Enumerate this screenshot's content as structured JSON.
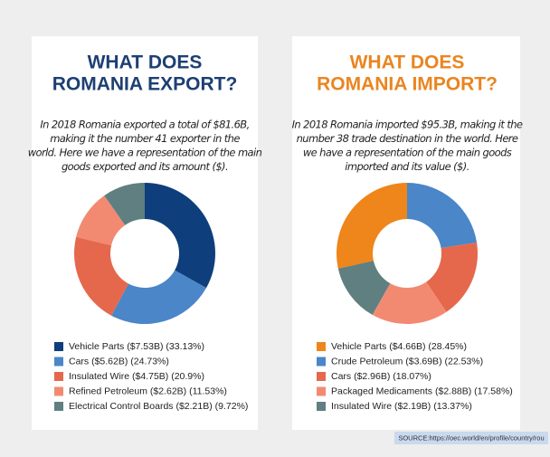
{
  "chart_data": [
    {
      "type": "pie",
      "title": [
        "WHAT DOES",
        "ROMANIA EXPORT?"
      ],
      "title_color": "#1d3f73",
      "subtitle": [
        "In 2018 Romania exported a total of $81.6B,",
        "making it the number 41 exporter in the",
        "world. Here we have a representation of the main",
        "goods exported and its amount ($)."
      ],
      "categories": [
        "Vehicle Parts ($7.53B) (33.13%)",
        "Cars ($5.62B) (24.73%)",
        "Insulated Wire ($4.75B) (20.9%)",
        "Refined Petroleum ($2.62B) (11.53%)",
        "Electrical Control Boards ($2.21B) (9.72%)"
      ],
      "values": [
        33.13,
        24.73,
        20.9,
        11.53,
        9.72
      ],
      "colors": [
        "#0e3e7b",
        "#4a86c8",
        "#e5684c",
        "#f28a72",
        "#5f7f80"
      ]
    },
    {
      "type": "pie",
      "title": [
        "WHAT DOES",
        "ROMANIA IMPORT?"
      ],
      "title_color": "#ea8520",
      "subtitle": [
        "In 2018 Romania imported $95.3B, making it the",
        "number 38 trade destination in the world. Here",
        "we have a representation of the main goods",
        "imported and its value ($)."
      ],
      "categories": [
        "Vehicle Parts ($4.66B) (28.45%)",
        "Crude Petroleum ($3.69B) (22.53%)",
        "Cars ($2.96B) (18.07%)",
        "Packaged Medicaments ($2.88B) (17.58%)",
        "Insulated Wire ($2.19B) (13.37%)"
      ],
      "values": [
        28.45,
        22.53,
        18.07,
        17.58,
        13.37
      ],
      "colors": [
        "#ee861b",
        "#4a86c8",
        "#e5684c",
        "#f28a72",
        "#5f7f80"
      ]
    }
  ],
  "source": "SOURCE:https://oec.world/en/profile/country/rou"
}
